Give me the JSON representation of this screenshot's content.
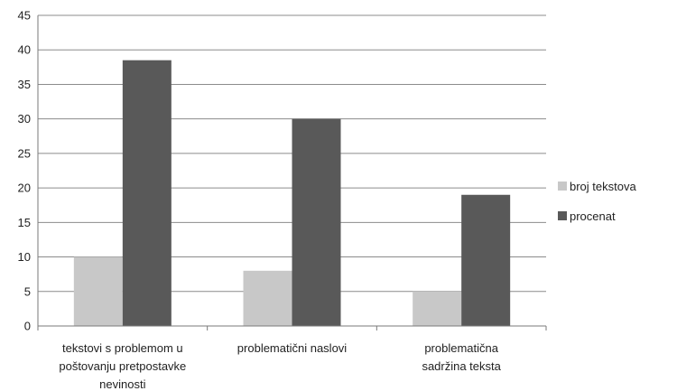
{
  "chart_data": {
    "type": "bar",
    "categories": [
      [
        "tekstovi s problemom u",
        "poštovanju pretpostavke",
        "nevinosti"
      ],
      [
        "problematični naslovi"
      ],
      [
        "problematična",
        "sadržina teksta"
      ]
    ],
    "series": [
      {
        "name": "broj tekstova",
        "values": [
          10,
          8,
          5
        ],
        "color": "#c8c8c8"
      },
      {
        "name": "procenat",
        "values": [
          38.5,
          30,
          19
        ],
        "color": "#595959"
      }
    ],
    "ylim": [
      0,
      45
    ],
    "yticks": [
      0,
      5,
      10,
      15,
      20,
      25,
      30,
      35,
      40,
      45
    ],
    "grid": true,
    "legend": "right",
    "title": "",
    "xlabel": "",
    "ylabel": ""
  }
}
